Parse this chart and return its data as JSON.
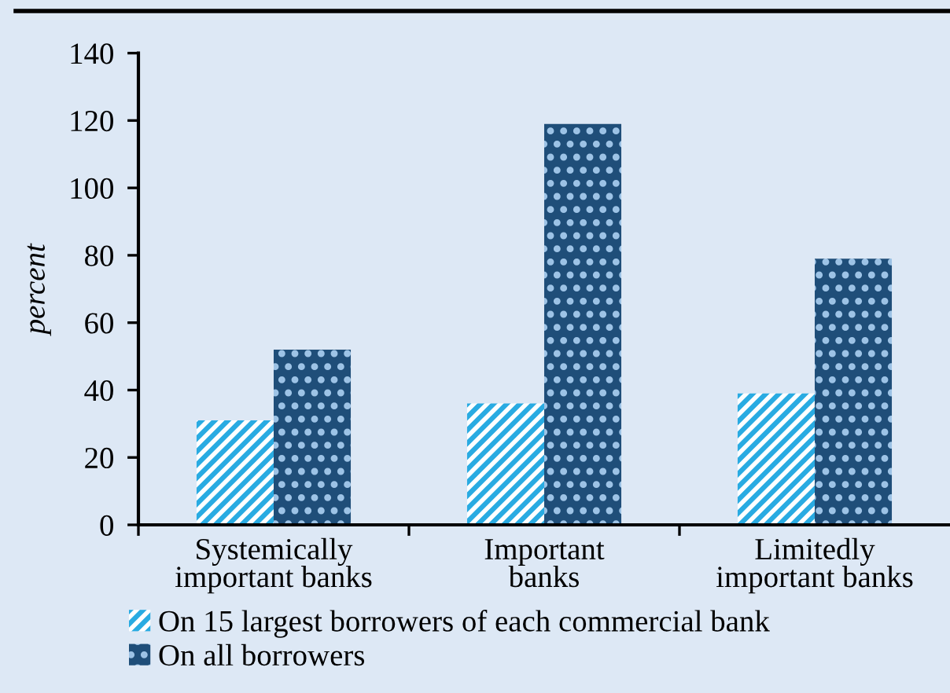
{
  "chart_data": {
    "type": "bar",
    "ylabel": "percent",
    "categories": [
      "Systemically\nimportant banks",
      "Important\nbanks",
      "Limitedly\nimportant banks"
    ],
    "series": [
      {
        "name": "On 15 largest borrowers of each commercial bank",
        "color": "#29abe2",
        "values": [
          31,
          36,
          39
        ]
      },
      {
        "name": "On all borrowers",
        "color": "#1f4e79",
        "values": [
          52,
          119,
          79
        ]
      }
    ],
    "ylim": [
      0,
      140
    ],
    "yticks": [
      0,
      20,
      40,
      60,
      80,
      100,
      120,
      140
    ],
    "grid": false,
    "legend": "bottom"
  }
}
